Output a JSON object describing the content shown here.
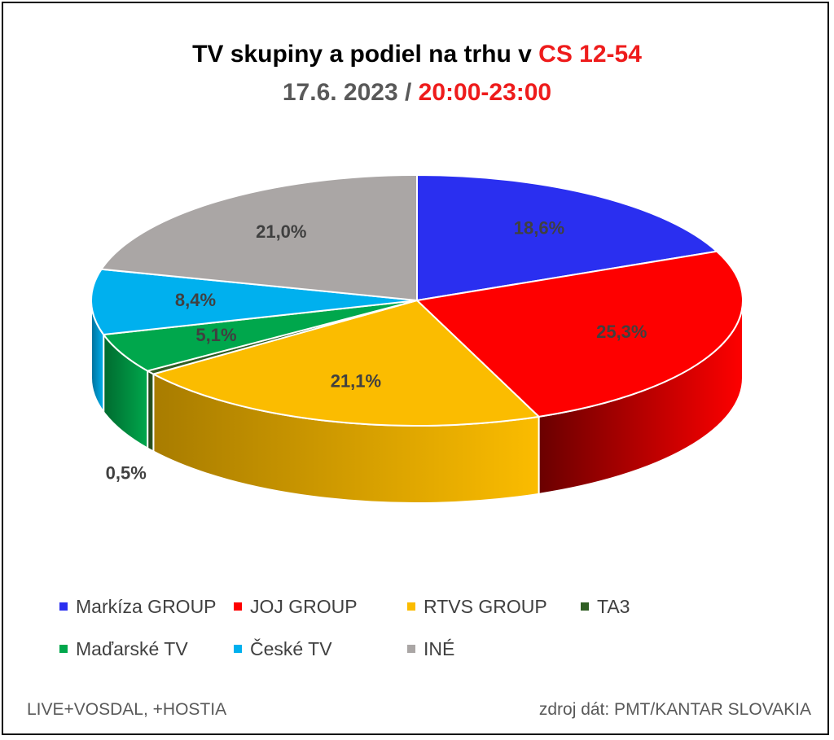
{
  "title": {
    "line1_black": "TV skupiny a podiel na trhu v ",
    "line1_red": "CS 12-54",
    "line2_gray": "17.6. 2023 / ",
    "line2_red": "20:00-23:00"
  },
  "colors": {
    "title_red": "#ee1c1c",
    "title_gray": "#595959",
    "label_text": "#404040"
  },
  "chart_data": {
    "type": "pie",
    "style": "3d",
    "legend_position": "bottom",
    "slices": [
      {
        "name": "Markíza GROUP",
        "value": 18.6,
        "label": "18,6%",
        "color": "#2a2ff0",
        "side_color": "#1a1d9a"
      },
      {
        "name": "JOJ GROUP",
        "value": 25.3,
        "label": "25,3%",
        "color": "#fe0000",
        "side_color": "#6a0000"
      },
      {
        "name": "RTVS GROUP",
        "value": 21.1,
        "label": "21,1%",
        "color": "#fbbc00",
        "side_color": "#a87c00"
      },
      {
        "name": "TA3",
        "value": 0.5,
        "label": "0,5%",
        "color": "#2f5e23",
        "side_color": "#1d3b16"
      },
      {
        "name": "Maďarské  TV",
        "value": 5.1,
        "label": "5,1%",
        "color": "#00a74c",
        "side_color": "#006a2f"
      },
      {
        "name": "České  TV",
        "value": 8.4,
        "label": "8,4%",
        "color": "#00b0ee",
        "side_color": "#006f99"
      },
      {
        "name": "INÉ",
        "value": 21.0,
        "label": "21,0%",
        "color": "#aaa6a5",
        "side_color": "#6d6a69"
      }
    ]
  },
  "footer": {
    "left": "LIVE+VOSDAL, +HOSTIA",
    "right": "zdroj dát: PMT/KANTAR SLOVAKIA"
  }
}
